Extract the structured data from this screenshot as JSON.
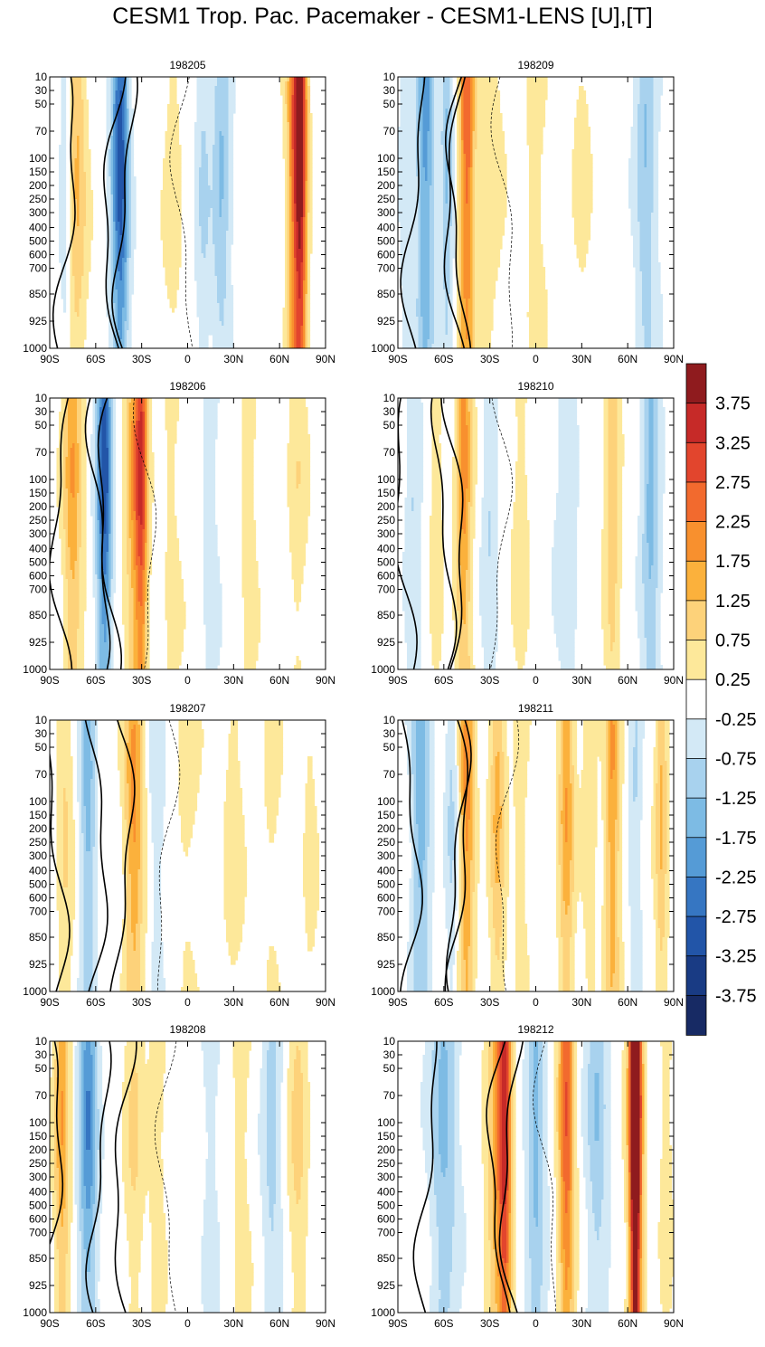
{
  "chart_data": {
    "type": "heatmap",
    "title": "CESM1 Trop. Pac. Pacemaker - CESM1-LENS [U],[T]",
    "y_ticks": [
      "10",
      "30",
      "50",
      "70",
      "100",
      "150",
      "200",
      "250",
      "300",
      "400",
      "500",
      "600",
      "700",
      "850",
      "925",
      "1000"
    ],
    "x_ticks": [
      "90S",
      "60S",
      "30S",
      "0",
      "30N",
      "60N",
      "90N"
    ],
    "colorbar": {
      "labels": [
        "3.75",
        "3.25",
        "2.75",
        "2.25",
        "1.75",
        "1.25",
        "0.75",
        "0.25",
        "-0.25",
        "-0.75",
        "-1.25",
        "-1.75",
        "-2.25",
        "-2.75",
        "-3.25",
        "-3.75"
      ],
      "colors": [
        "#8f1b1e",
        "#c62a28",
        "#e2452d",
        "#f26a2e",
        "#f8902e",
        "#fbb13c",
        "#fdd27a",
        "#fde89a",
        "#ffffff",
        "#d3e9f6",
        "#a8d2ee",
        "#7dbbe4",
        "#559bd6",
        "#3676c2",
        "#2255a8",
        "#193b84",
        "#172a64"
      ]
    },
    "panels": [
      {
        "title": "198205",
        "bands": [
          [
            -72,
            6,
            1.3
          ],
          [
            -47,
            5,
            -1.0
          ],
          [
            -43,
            5,
            -2.5
          ],
          [
            -10,
            6,
            0.5
          ],
          [
            10,
            5,
            -0.8
          ],
          [
            22,
            6,
            -1.3
          ],
          [
            70,
            5,
            2.4
          ],
          [
            74,
            4,
            3.3
          ],
          [
            -80,
            4,
            -0.6
          ]
        ]
      },
      {
        "title": "198209",
        "bands": [
          [
            -72,
            6,
            -2.0
          ],
          [
            -58,
            4,
            -1.3
          ],
          [
            -45,
            5,
            2.6
          ],
          [
            -30,
            8,
            0.6
          ],
          [
            0,
            7,
            0.5
          ],
          [
            30,
            6,
            0.4
          ],
          [
            72,
            7,
            -1.3
          ],
          [
            -85,
            5,
            -0.5
          ]
        ]
      },
      {
        "title": "198206",
        "bands": [
          [
            -75,
            6,
            1.7
          ],
          [
            -57,
            4,
            -1.5
          ],
          [
            -53,
            4,
            -2.3
          ],
          [
            -35,
            6,
            1.6
          ],
          [
            -30,
            4,
            2.6
          ],
          [
            -10,
            7,
            0.4
          ],
          [
            15,
            6,
            -0.5
          ],
          [
            40,
            6,
            0.5
          ],
          [
            72,
            6,
            0.6
          ]
        ]
      },
      {
        "title": "198210",
        "bands": [
          [
            -80,
            5,
            -0.8
          ],
          [
            -65,
            4,
            0.6
          ],
          [
            -47,
            5,
            2.0
          ],
          [
            -30,
            5,
            -0.8
          ],
          [
            -10,
            6,
            0.5
          ],
          [
            20,
            8,
            -0.6
          ],
          [
            50,
            5,
            1.2
          ],
          [
            75,
            6,
            -1.5
          ]
        ]
      },
      {
        "title": "198207",
        "bands": [
          [
            -80,
            5,
            0.8
          ],
          [
            -65,
            5,
            -1.5
          ],
          [
            -35,
            6,
            1.9
          ],
          [
            -20,
            5,
            -0.6
          ],
          [
            0,
            8,
            0.4
          ],
          [
            30,
            7,
            0.5
          ],
          [
            55,
            6,
            0.4
          ],
          [
            80,
            5,
            0.4
          ]
        ]
      },
      {
        "title": "198211",
        "bands": [
          [
            -75,
            6,
            -1.7
          ],
          [
            -55,
            4,
            -0.8
          ],
          [
            -45,
            5,
            2.0
          ],
          [
            -25,
            5,
            1.4
          ],
          [
            -10,
            5,
            0.5
          ],
          [
            20,
            5,
            1.7
          ],
          [
            35,
            5,
            0.6
          ],
          [
            50,
            5,
            1.8
          ],
          [
            65,
            4,
            -0.8
          ],
          [
            82,
            4,
            1.3
          ]
        ]
      },
      {
        "title": "198208",
        "bands": [
          [
            -82,
            5,
            1.7
          ],
          [
            -65,
            6,
            -2.2
          ],
          [
            -35,
            6,
            0.8
          ],
          [
            -20,
            6,
            0.5
          ],
          [
            15,
            6,
            -0.5
          ],
          [
            35,
            6,
            0.5
          ],
          [
            55,
            6,
            -1.0
          ],
          [
            72,
            6,
            0.9
          ]
        ]
      },
      {
        "title": "198212",
        "bands": [
          [
            -60,
            9,
            -1.4
          ],
          [
            -25,
            7,
            1.7
          ],
          [
            -20,
            4,
            2.8
          ],
          [
            0,
            6,
            -1.5
          ],
          [
            20,
            5,
            2.8
          ],
          [
            40,
            7,
            -1.2
          ],
          [
            65,
            5,
            3.0
          ],
          [
            65,
            3,
            3.8
          ],
          [
            85,
            4,
            0.6
          ]
        ]
      }
    ]
  }
}
